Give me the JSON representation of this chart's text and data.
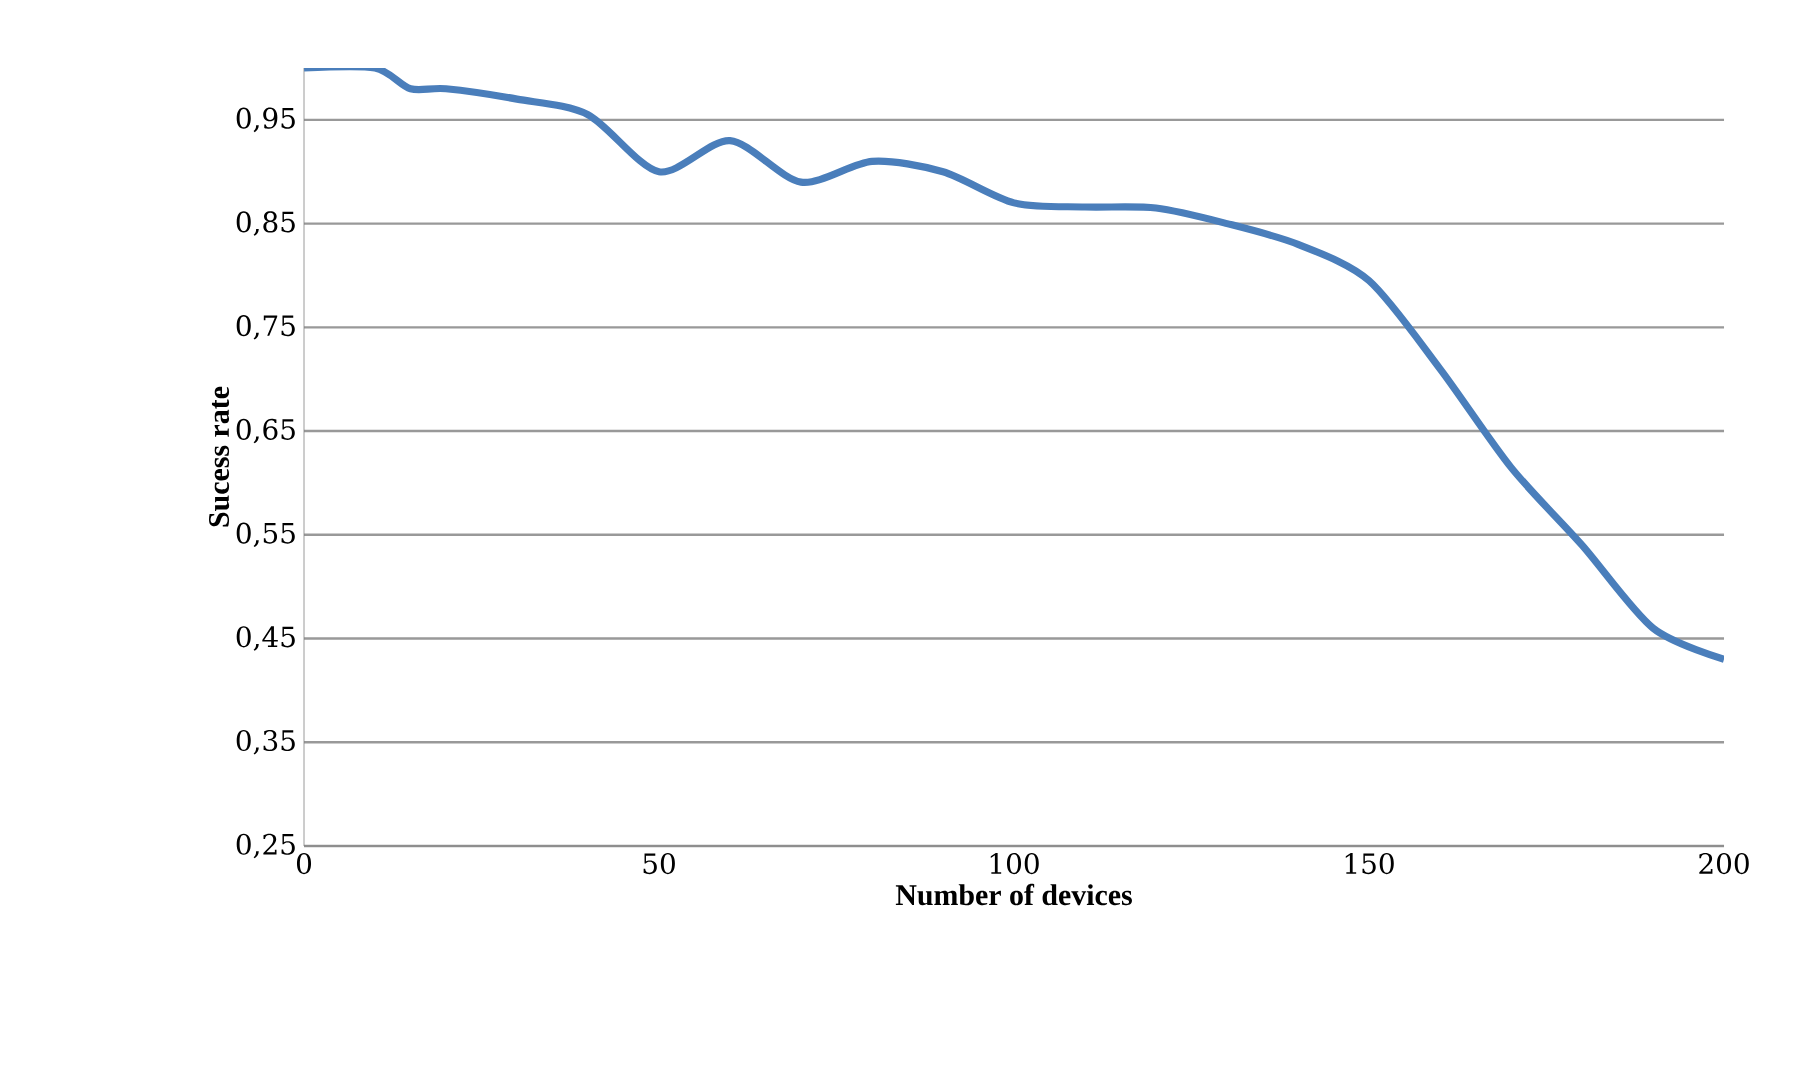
{
  "chart_data": {
    "type": "line",
    "xlabel": "Number of devices",
    "ylabel": "Sucess rate",
    "x": [
      0,
      10,
      15,
      20,
      30,
      40,
      50,
      60,
      70,
      80,
      90,
      100,
      110,
      120,
      130,
      140,
      150,
      160,
      170,
      180,
      190,
      200
    ],
    "series": [
      {
        "color": "#4a7ebb",
        "values": [
          1.0,
          1.0,
          0.98,
          0.98,
          0.97,
          0.955,
          0.9,
          0.93,
          0.89,
          0.91,
          0.9,
          0.87,
          0.866,
          0.865,
          0.85,
          0.83,
          0.795,
          0.71,
          0.615,
          0.54,
          0.46,
          0.43
        ]
      }
    ],
    "xlim": [
      0,
      200
    ],
    "ylim": [
      0.25,
      1.0
    ],
    "xticks": [
      0,
      50,
      100,
      150,
      200
    ],
    "yticks": [
      {
        "value": 0.25,
        "label": "0,25"
      },
      {
        "value": 0.35,
        "label": "0,35"
      },
      {
        "value": 0.45,
        "label": "0,45"
      },
      {
        "value": 0.55,
        "label": "0,55"
      },
      {
        "value": 0.65,
        "label": "0,65"
      },
      {
        "value": 0.75,
        "label": "0,75"
      },
      {
        "value": 0.85,
        "label": "0,85"
      },
      {
        "value": 0.95,
        "label": "0,95"
      }
    ],
    "grid": "y",
    "marker": "none",
    "line_style": "solid"
  }
}
